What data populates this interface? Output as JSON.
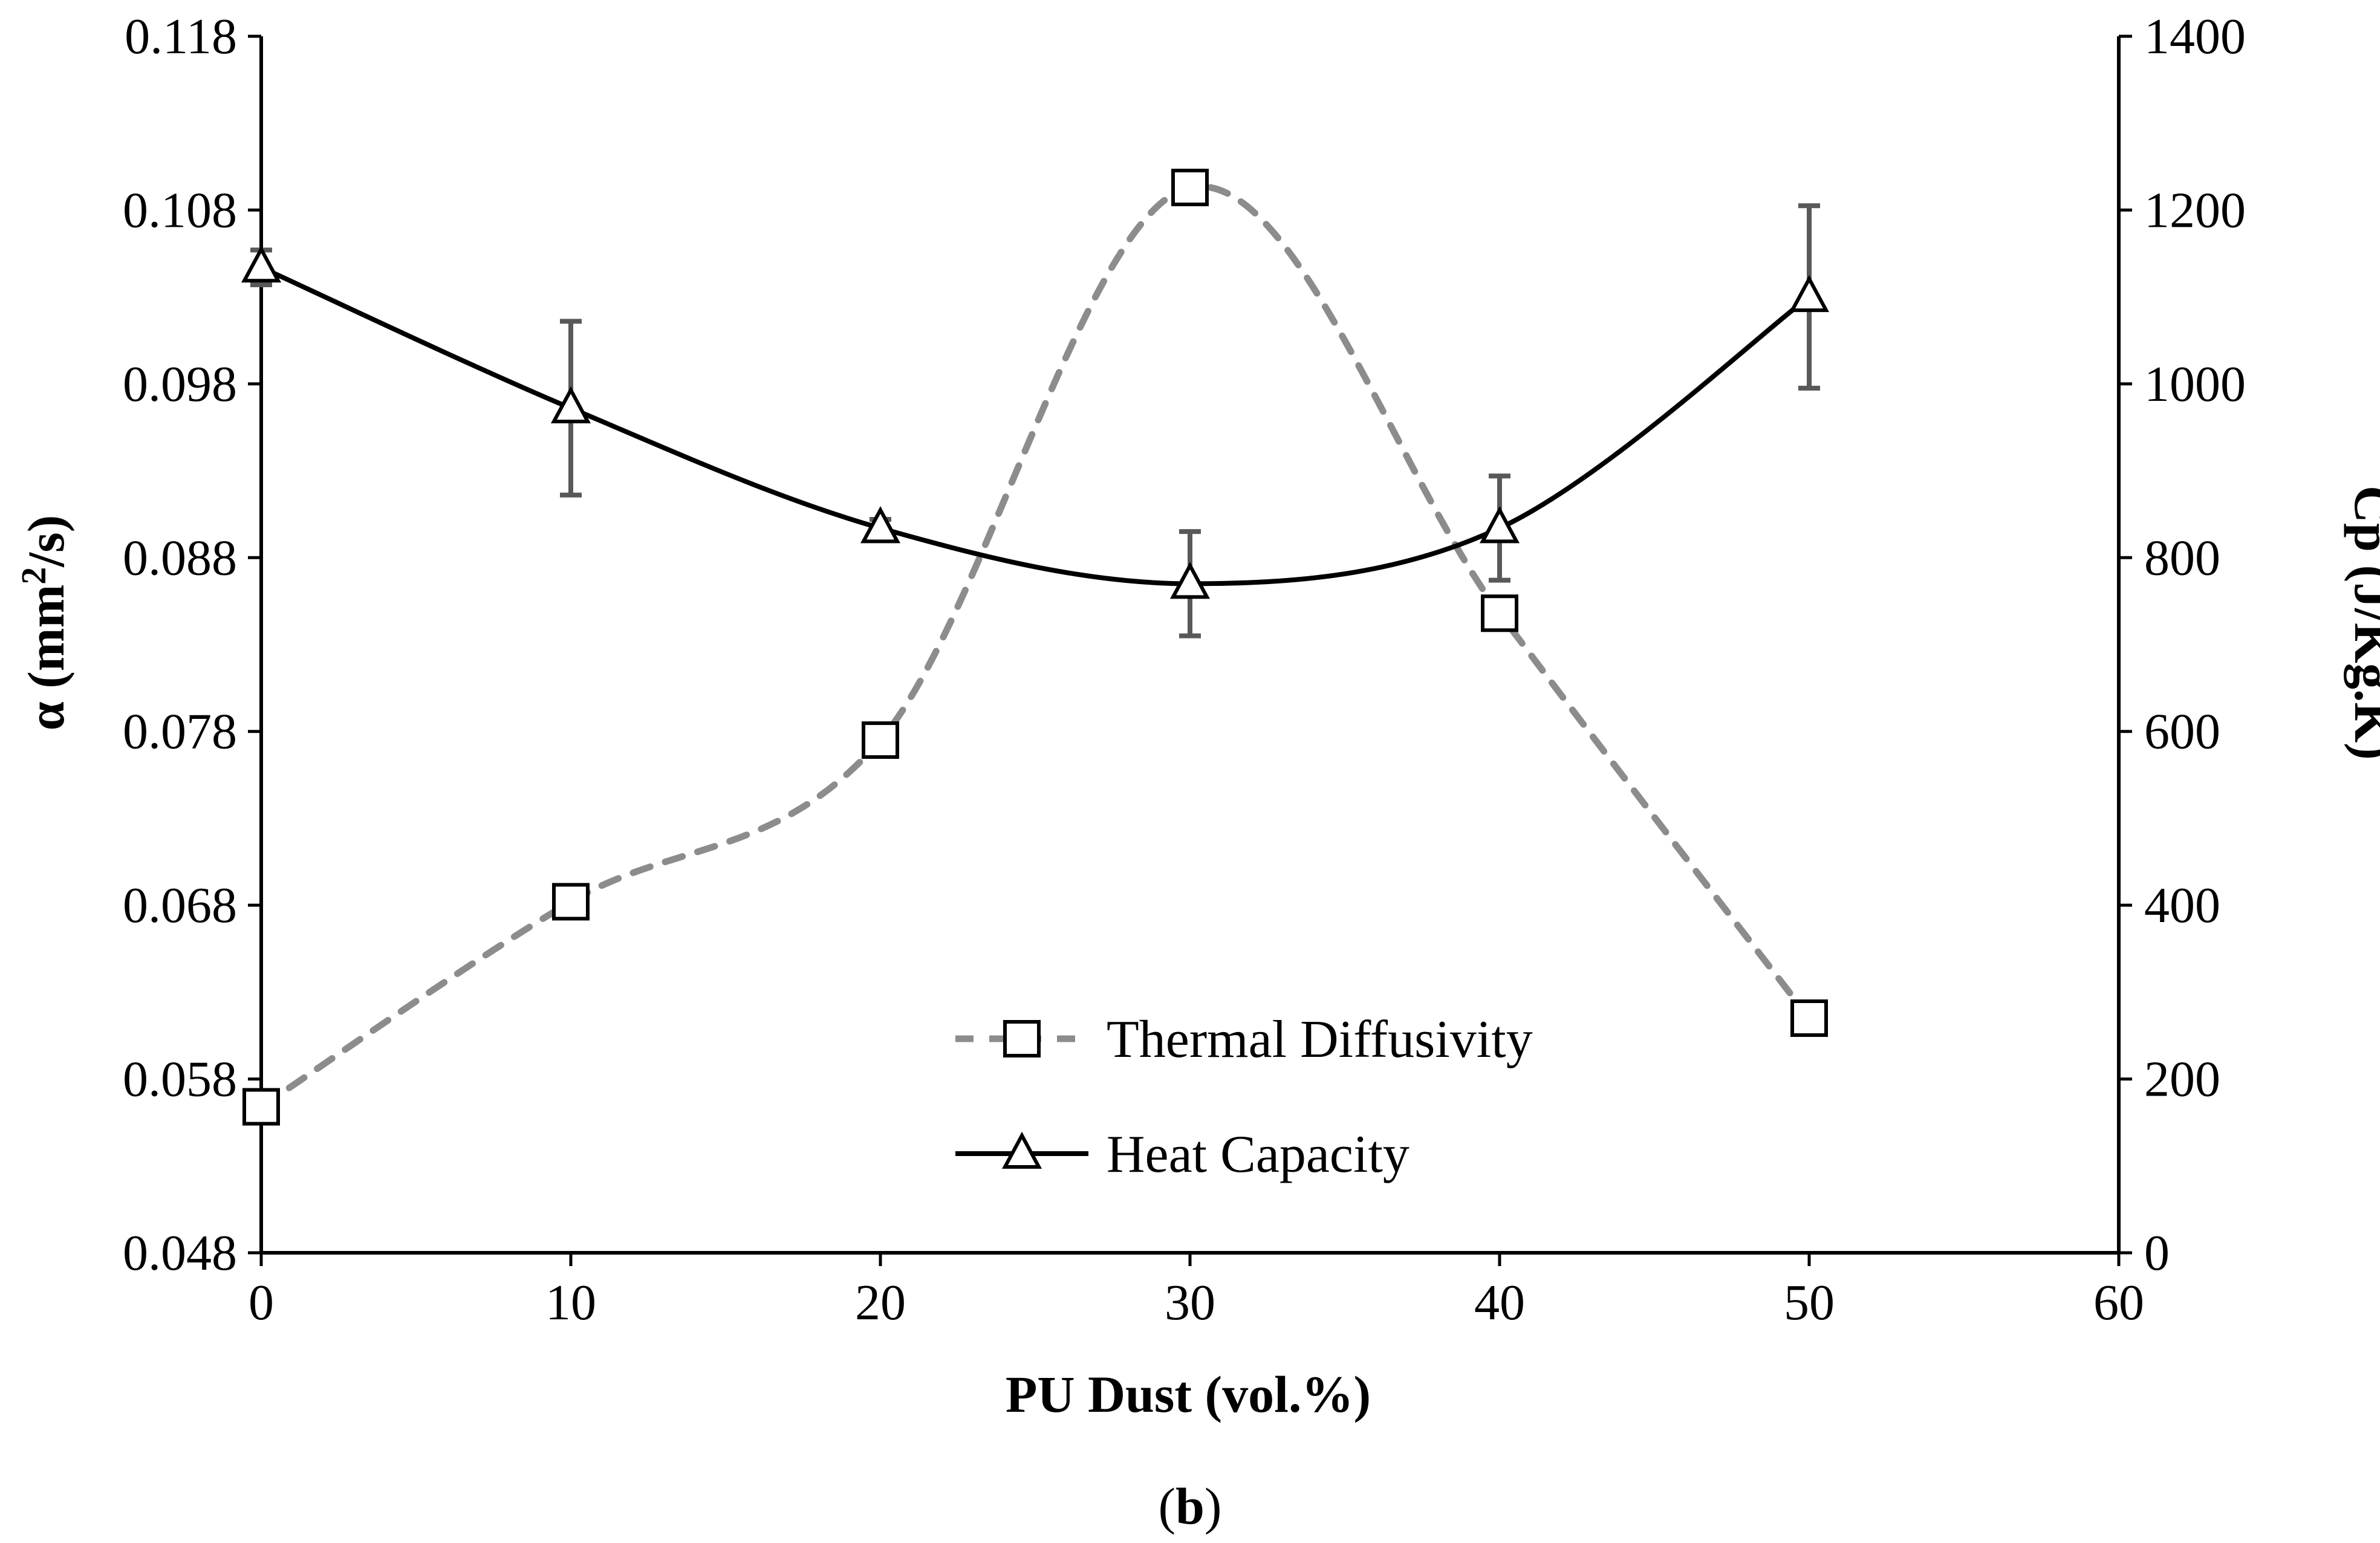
{
  "chart_data": {
    "type": "line",
    "caption": {
      "prefix": "(",
      "letter": "b",
      "suffix": ")"
    },
    "xlabel": "PU Dust (vol.%)",
    "ylabel_left_main": "α (mm",
    "ylabel_left_sup": "2",
    "ylabel_left_tail": "/s)",
    "ylabel_right": "Cp (J/Kg.K)",
    "xlim": [
      0,
      60
    ],
    "ylim_left": [
      0.048,
      0.118
    ],
    "ylim_right": [
      0,
      1400
    ],
    "x_ticks": [
      0,
      10,
      20,
      30,
      40,
      50,
      60
    ],
    "x_tick_labels": [
      "0",
      "10",
      "20",
      "30",
      "40",
      "50",
      "60"
    ],
    "y_left_ticks": [
      0.048,
      0.058,
      0.068,
      0.078,
      0.088,
      0.098,
      0.108,
      0.118
    ],
    "y_left_tick_labels": [
      "0.048",
      "0.058",
      "0.068",
      "0.078",
      "0.088",
      "0.098",
      "0.108",
      "0.118"
    ],
    "y_right_ticks": [
      0,
      200,
      400,
      600,
      800,
      1000,
      1200,
      1400
    ],
    "y_right_tick_labels": [
      "0",
      "200",
      "400",
      "600",
      "800",
      "1000",
      "1200",
      "1400"
    ],
    "legend_position": "bottom-center",
    "series": [
      {
        "name": "Thermal Diffusivity",
        "axis": "left",
        "marker": "square",
        "line_style": "dashed",
        "color": "#8c8c8c",
        "x": [
          0,
          10,
          20,
          30,
          40,
          50
        ],
        "y": [
          0.0564,
          0.0682,
          0.0775,
          0.1093,
          0.0848,
          0.0615
        ]
      },
      {
        "name": "Heat Capacity",
        "axis": "right",
        "marker": "triangle",
        "line_style": "solid",
        "color": "#000000",
        "x": [
          0,
          10,
          20,
          30,
          40,
          50
        ],
        "y": [
          1134,
          972,
          834,
          770,
          834,
          1100
        ],
        "error": [
          20,
          100,
          10,
          60,
          60,
          105
        ]
      }
    ]
  }
}
